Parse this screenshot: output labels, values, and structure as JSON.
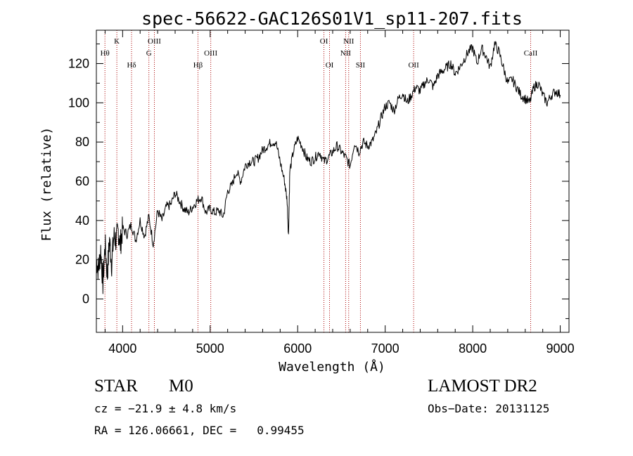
{
  "chart_data": {
    "type": "line",
    "title": "spec-56622-GAC126S01V1_sp11-207.fits",
    "xlabel": "Wavelength (Å)",
    "ylabel": "Flux (relative)",
    "xlim": [
      3700,
      9100
    ],
    "ylim": [
      -17,
      137
    ],
    "xticks": [
      4000,
      5000,
      6000,
      7000,
      8000,
      9000
    ],
    "yticks": [
      0,
      20,
      40,
      60,
      80,
      100,
      120
    ],
    "line_color": "#000000",
    "marker_color": "#aa0000",
    "series": [
      {
        "x": [
          3700,
          3725,
          3750,
          3775,
          3800,
          3825,
          3850,
          3875,
          3900,
          3925,
          3950,
          3975,
          4000,
          4050,
          4100,
          4150,
          4200,
          4250,
          4300,
          4350,
          4400,
          4450,
          4500,
          4550,
          4600,
          4650,
          4700,
          4750,
          4800,
          4850,
          4900,
          4950,
          5000,
          5050,
          5100,
          5150,
          5200,
          5250,
          5300,
          5350,
          5400,
          5450,
          5500,
          5550,
          5600,
          5650,
          5700,
          5750,
          5800,
          5850,
          5880,
          5895,
          5910,
          5950,
          6000,
          6050,
          6100,
          6150,
          6200,
          6250,
          6300,
          6350,
          6400,
          6450,
          6500,
          6550,
          6600,
          6650,
          6700,
          6750,
          6800,
          6850,
          6900,
          6950,
          7000,
          7050,
          7100,
          7150,
          7200,
          7250,
          7300,
          7350,
          7400,
          7450,
          7500,
          7550,
          7600,
          7650,
          7700,
          7750,
          7800,
          7850,
          7900,
          7950,
          8000,
          8050,
          8100,
          8150,
          8200,
          8250,
          8300,
          8350,
          8400,
          8450,
          8500,
          8550,
          8600,
          8650,
          8700,
          8750,
          8800,
          8850,
          8900,
          8950,
          9000
        ],
        "y": [
          20,
          15,
          25,
          8,
          28,
          12,
          30,
          18,
          32,
          30,
          35,
          28,
          36,
          33,
          38,
          30,
          40,
          32,
          42,
          28,
          45,
          40,
          47,
          48,
          54,
          50,
          46,
          44,
          47,
          50,
          52,
          44,
          46,
          44,
          45,
          42,
          55,
          58,
          65,
          60,
          68,
          70,
          70,
          72,
          76,
          78,
          80,
          80,
          70,
          60,
          50,
          32,
          65,
          75,
          82,
          78,
          72,
          70,
          72,
          75,
          70,
          72,
          75,
          78,
          75,
          72,
          68,
          80,
          75,
          80,
          78,
          80,
          85,
          92,
          98,
          100,
          96,
          102,
          105,
          100,
          104,
          108,
          106,
          110,
          112,
          108,
          114,
          116,
          118,
          120,
          115,
          118,
          122,
          126,
          128,
          120,
          128,
          124,
          118,
          130,
          126,
          118,
          110,
          112,
          108,
          104,
          102,
          100,
          108,
          110,
          104,
          100,
          104,
          106,
          104
        ]
      }
    ],
    "line_markers": [
      {
        "label": "Hθ",
        "x": 3798,
        "row": 2
      },
      {
        "label": "K",
        "x": 3934,
        "row": 1
      },
      {
        "label": "Hδ",
        "x": 4102,
        "row": 3
      },
      {
        "label": "G",
        "x": 4300,
        "row": 2
      },
      {
        "label": "OIII",
        "x": 4363,
        "row": 1
      },
      {
        "label": "Hβ",
        "x": 4861,
        "row": 3
      },
      {
        "label": "OIII",
        "x": 5007,
        "row": 2
      },
      {
        "label": "OI",
        "x": 6300,
        "row": 1
      },
      {
        "label": "OI",
        "x": 6364,
        "row": 3
      },
      {
        "label": "NII",
        "x": 6548,
        "row": 2
      },
      {
        "label": "NII",
        "x": 6583,
        "row": 1
      },
      {
        "label": "SII",
        "x": 6717,
        "row": 3
      },
      {
        "label": "OII",
        "x": 7325,
        "row": 3
      },
      {
        "label": "CaII",
        "x": 8662,
        "row": 2
      }
    ]
  },
  "info": {
    "object_class": "STAR",
    "subclass": "M0",
    "survey": "LAMOST DR2",
    "cz": "cz = −21.9 ± 4.8 km/s",
    "obs_date": "Obs−Date: 20131125",
    "coords": "RA = 126.06661, DEC =   0.99455"
  }
}
